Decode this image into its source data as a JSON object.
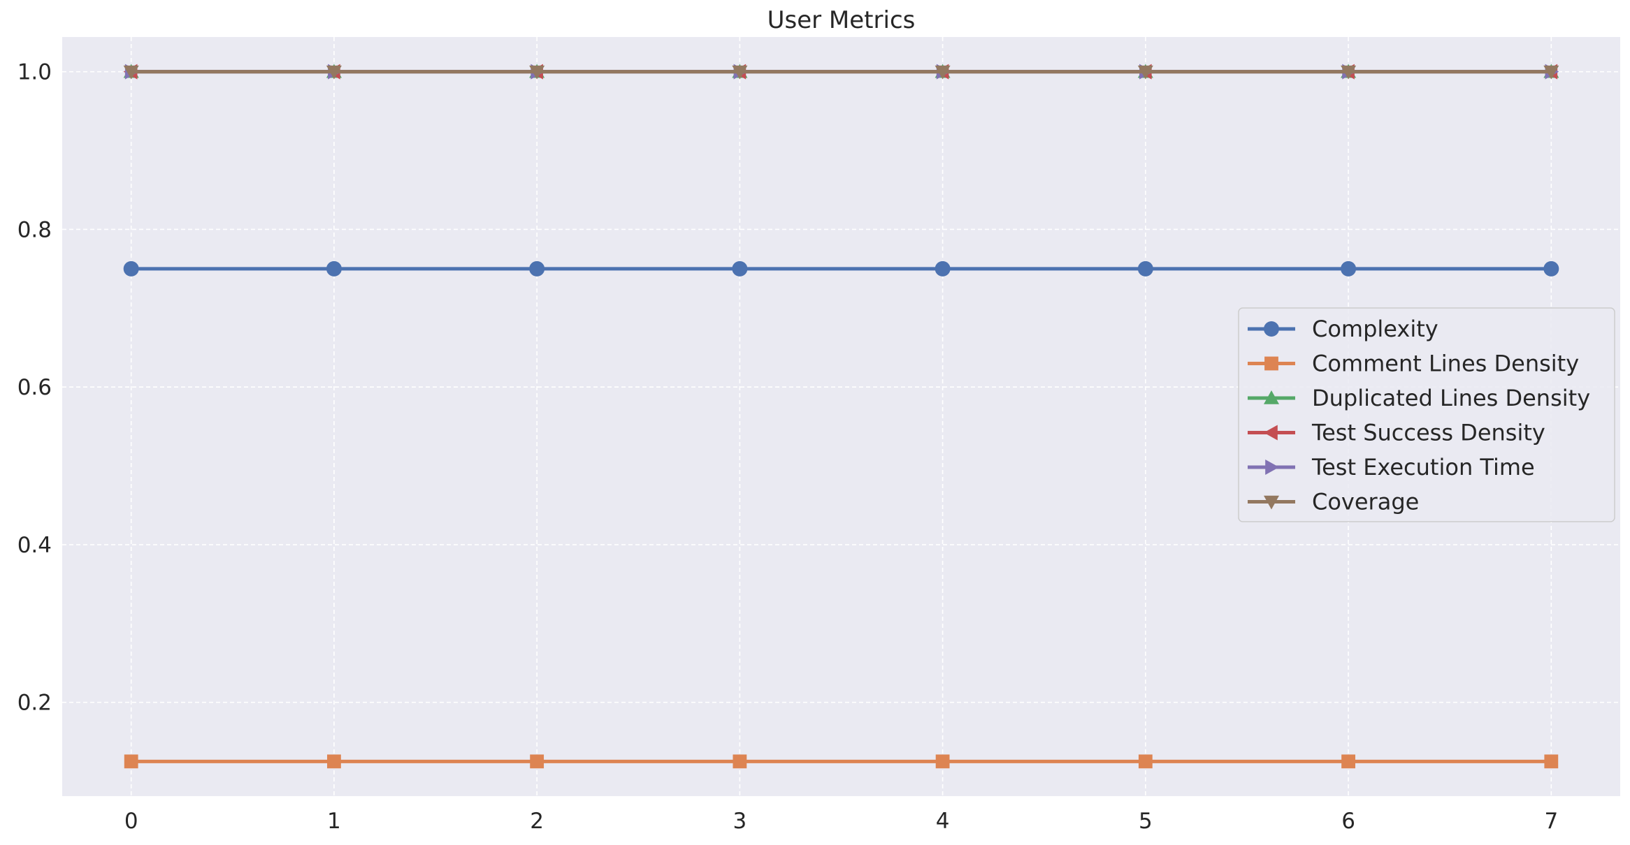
{
  "chart_data": {
    "type": "line",
    "title": "User Metrics",
    "xlabel": "",
    "ylabel": "",
    "x": [
      0,
      1,
      2,
      3,
      4,
      5,
      6,
      7
    ],
    "xlim": [
      -0.34,
      7.34
    ],
    "ylim": [
      0.081,
      1.044
    ],
    "xticks": [
      0,
      1,
      2,
      3,
      4,
      5,
      6,
      7
    ],
    "yticks": [
      0.2,
      0.4,
      0.6,
      0.8,
      1.0
    ],
    "ytick_labels": [
      "0.2",
      "0.4",
      "0.6",
      "0.8",
      "1.0"
    ],
    "grid": true,
    "grid_style": "dashed",
    "legend_position": "center-right",
    "colors": {
      "plot_background": "#eaeaf2",
      "grid": "#ffffff",
      "text": "#262626"
    },
    "series": [
      {
        "name": "Complexity",
        "color": "#4c72b0",
        "marker": "circle",
        "values": [
          0.75,
          0.75,
          0.75,
          0.75,
          0.75,
          0.75,
          0.75,
          0.75
        ]
      },
      {
        "name": "Comment Lines Density",
        "color": "#dd8452",
        "marker": "square",
        "values": [
          0.125,
          0.125,
          0.125,
          0.125,
          0.125,
          0.125,
          0.125,
          0.125
        ]
      },
      {
        "name": "Duplicated Lines Density",
        "color": "#55a868",
        "marker": "triangle-up",
        "values": [
          1.0,
          1.0,
          1.0,
          1.0,
          1.0,
          1.0,
          1.0,
          1.0
        ]
      },
      {
        "name": "Test Success Density",
        "color": "#c44e52",
        "marker": "triangle-left",
        "values": [
          1.0,
          1.0,
          1.0,
          1.0,
          1.0,
          1.0,
          1.0,
          1.0
        ]
      },
      {
        "name": "Test Execution Time",
        "color": "#8172b3",
        "marker": "triangle-right",
        "values": [
          1.0,
          1.0,
          1.0,
          1.0,
          1.0,
          1.0,
          1.0,
          1.0
        ]
      },
      {
        "name": "Coverage",
        "color": "#937860",
        "marker": "triangle-down",
        "values": [
          1.0,
          1.0,
          1.0,
          1.0,
          1.0,
          1.0,
          1.0,
          1.0
        ]
      }
    ]
  }
}
